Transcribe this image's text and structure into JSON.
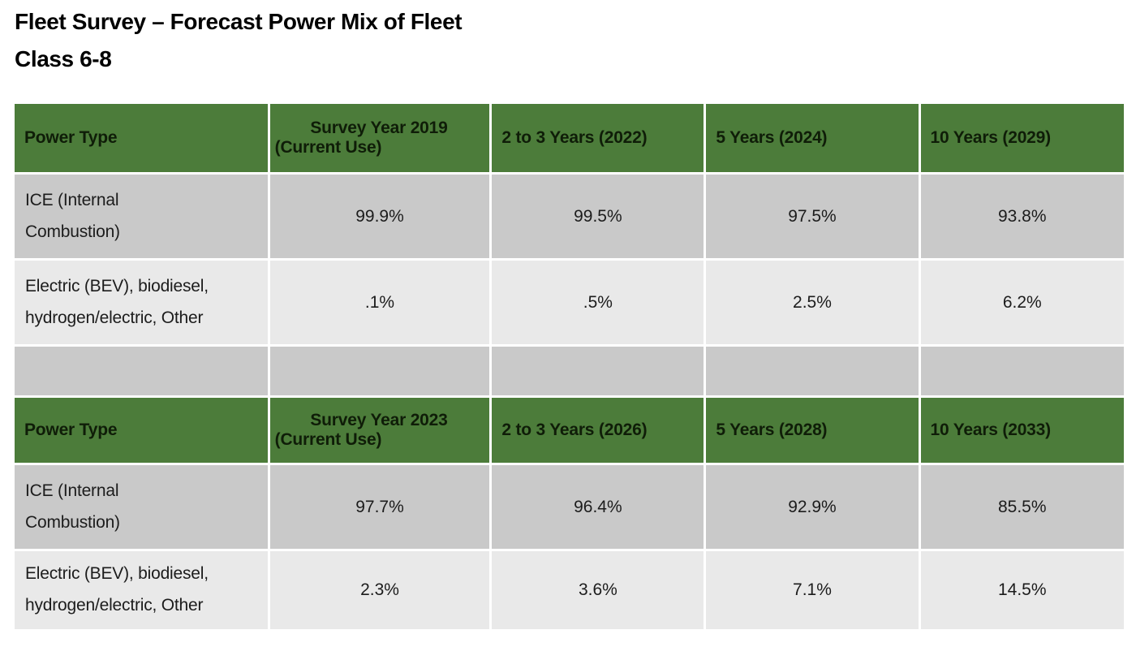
{
  "title": {
    "line1": "Fleet Survey – Forecast Power Mix of Fleet",
    "line2": "Class 6-8"
  },
  "colors": {
    "header_green": "#4c7c3a",
    "header_text": "#0f1d08",
    "row_dark_gray": "#c9c9c9",
    "row_light_gray": "#e9e9e9",
    "grid_line": "#ffffff",
    "body_text": "#1c1c1c"
  },
  "tables": [
    {
      "headers": {
        "power_type": "Power Type",
        "survey_line1": "Survey Year 2019",
        "survey_line2": "(Current Use)",
        "col3": "2 to 3 Years (2022)",
        "col4": "5 Years (2024)",
        "col5": "10 Years (2029)"
      },
      "rows": [
        {
          "label": "ICE (Internal\nCombustion)",
          "v1": "99.9%",
          "v2": "99.5%",
          "v3": "97.5%",
          "v4": "93.8%"
        },
        {
          "label": "Electric (BEV), biodiesel,\nhydrogen/electric, Other",
          "v1": ".1%",
          "v2": ".5%",
          "v3": "2.5%",
          "v4": "6.2%"
        }
      ]
    },
    {
      "headers": {
        "power_type": "Power Type",
        "survey_line1": "Survey Year 2023",
        "survey_line2": "(Current Use)",
        "col3": "2 to 3 Years (2026)",
        "col4": "5 Years (2028)",
        "col5": "10 Years (2033)"
      },
      "rows": [
        {
          "label": "ICE (Internal\nCombustion)",
          "v1": "97.7%",
          "v2": "96.4%",
          "v3": "92.9%",
          "v4": "85.5%"
        },
        {
          "label": "Electric (BEV), biodiesel,\nhydrogen/electric, Other",
          "v1": "2.3%",
          "v2": "3.6%",
          "v3": "7.1%",
          "v4": "14.5%"
        }
      ]
    }
  ],
  "chart_data": [
    {
      "type": "table",
      "title": "Fleet Survey – Forecast Power Mix of Fleet Class 6-8",
      "columns": [
        "Power Type",
        "Survey Year 2019 (Current Use)",
        "2 to 3 Years (2022)",
        "5 Years (2024)",
        "10 Years (2029)"
      ],
      "rows": [
        [
          "ICE (Internal Combustion)",
          ".999",
          ".995",
          ".975",
          ".938"
        ],
        [
          "Electric (BEV), biodiesel, hydrogen/electric, Other",
          ".001",
          ".005",
          ".025",
          ".062"
        ]
      ],
      "cell_text": [
        [
          "ICE (Internal Combustion)",
          "99.9%",
          "99.5%",
          "97.5%",
          "93.8%"
        ],
        [
          "Electric (BEV), biodiesel, hydrogen/electric, Other",
          ".1%",
          ".5%",
          "2.5%",
          "6.2%"
        ]
      ]
    },
    {
      "type": "table",
      "title": "Fleet Survey – Forecast Power Mix of Fleet Class 6-8",
      "columns": [
        "Power Type",
        "Survey Year 2023 (Current Use)",
        "2 to 3 Years (2026)",
        "5 Years (2028)",
        "10 Years (2033)"
      ],
      "rows": [
        [
          "ICE (Internal Combustion)",
          ".977",
          ".964",
          ".929",
          ".855"
        ],
        [
          "Electric (BEV), biodiesel, hydrogen/electric, Other",
          ".023",
          ".036",
          ".071",
          ".145"
        ]
      ],
      "cell_text": [
        [
          "ICE (Internal Combustion)",
          "97.7%",
          "96.4%",
          "92.9%",
          "85.5%"
        ],
        [
          "Electric (BEV), biodiesel, hydrogen/electric, Other",
          "2.3%",
          "3.6%",
          "7.1%",
          "14.5%"
        ]
      ]
    }
  ]
}
